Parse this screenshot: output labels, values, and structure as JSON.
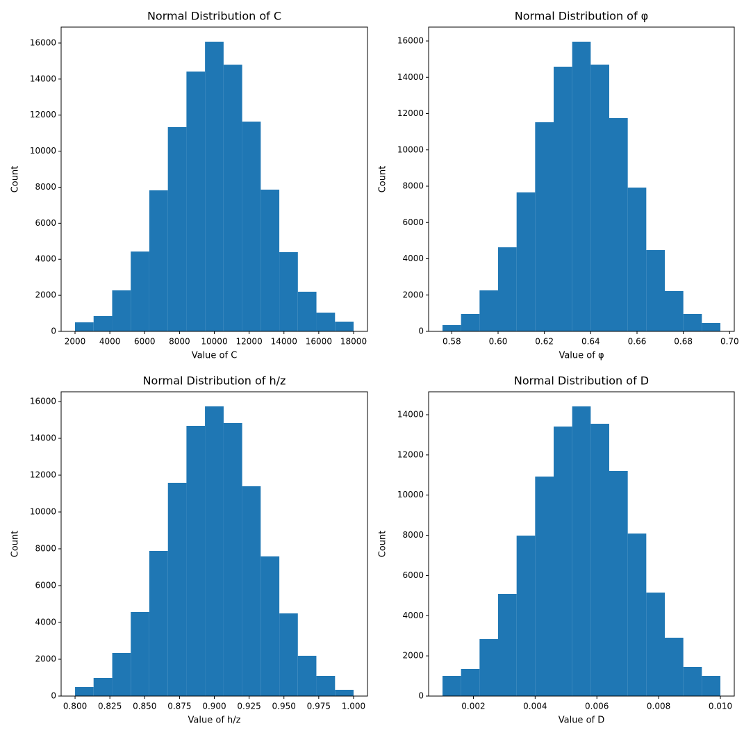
{
  "chart_data": [
    {
      "type": "histogram",
      "title": "Normal Distribution of C",
      "xlabel": "Value of C",
      "ylabel": "Count",
      "color": "#1f77b4",
      "bins": [
        2000,
        3066.67,
        4133.33,
        5200,
        6266.67,
        7333.33,
        8400,
        9466.67,
        10533.33,
        11600,
        12666.67,
        13733.33,
        14800,
        15866.67,
        16933.33,
        18000
      ],
      "values": [
        500,
        850,
        2275,
        4430,
        7825,
        11335,
        14420,
        16075,
        14800,
        11640,
        7865,
        4395,
        2200,
        1040,
        540
      ],
      "xlim": [
        1202,
        18798
      ],
      "ylim": [
        0,
        16885
      ],
      "xticks": [
        2000,
        4000,
        6000,
        8000,
        10000,
        12000,
        14000,
        16000,
        18000
      ],
      "yticks": [
        0,
        2000,
        4000,
        6000,
        8000,
        10000,
        12000,
        14000,
        16000
      ]
    },
    {
      "type": "histogram",
      "title": "Normal Distribution of φ",
      "xlabel": "Value of φ",
      "ylabel": "Count",
      "color": "#1f77b4",
      "bins": [
        0.576,
        0.584,
        0.592,
        0.6,
        0.608,
        0.616,
        0.624,
        0.632,
        0.64,
        0.648,
        0.656,
        0.664,
        0.672,
        0.68,
        0.688,
        0.696
      ],
      "values": [
        345,
        957,
        2258,
        4632,
        7655,
        11522,
        14584,
        15962,
        14699,
        11751,
        7923,
        4478,
        2220,
        957,
        459
      ],
      "xlim": [
        0.57,
        0.702
      ],
      "ylim": [
        0,
        16766
      ],
      "xticks": [
        0.58,
        {
          "value": 0.6,
          "label": "0.60"
        },
        0.62,
        0.64,
        0.66,
        0.68,
        {
          "value": 0.7,
          "label": "0.70"
        }
      ],
      "yticks": [
        0,
        2000,
        4000,
        6000,
        8000,
        10000,
        12000,
        14000,
        16000
      ]
    },
    {
      "type": "histogram",
      "title": "Normal Distribution of h/z",
      "xlabel": "Value of h/z",
      "ylabel": "Count",
      "color": "#1f77b4",
      "bins": [
        0.8,
        0.8133,
        0.8267,
        0.84,
        0.8533,
        0.8667,
        0.88,
        0.8933,
        0.9067,
        0.92,
        0.9333,
        0.9467,
        0.96,
        0.9733,
        0.9867,
        1.0
      ],
      "values": [
        490,
        981,
        2340,
        4566,
        7887,
        11585,
        14679,
        15736,
        14830,
        11396,
        7585,
        4491,
        2189,
        1094,
        340
      ],
      "xlim": [
        0.79,
        1.01
      ],
      "ylim": [
        0,
        16528
      ],
      "xticks": [
        {
          "value": 0.8,
          "label": "0.800"
        },
        0.825,
        {
          "value": 0.85,
          "label": "0.850"
        },
        0.875,
        {
          "value": 0.9,
          "label": "0.900"
        },
        0.925,
        {
          "value": 0.95,
          "label": "0.950"
        },
        0.975,
        {
          "value": 1.0,
          "label": "1.000"
        }
      ],
      "yticks": [
        0,
        2000,
        4000,
        6000,
        8000,
        10000,
        12000,
        14000,
        16000
      ]
    },
    {
      "type": "histogram",
      "title": "Normal Distribution of D",
      "xlabel": "Value of D",
      "ylabel": "Count",
      "color": "#1f77b4",
      "bins": [
        0.001,
        0.0016,
        0.0022,
        0.0028,
        0.0034,
        0.004,
        0.0046,
        0.0052,
        0.0058,
        0.0064,
        0.007,
        0.0076,
        0.0082,
        0.0088,
        0.0094,
        0.01
      ],
      "values": [
        1002,
        1348,
        2835,
        5081,
        7985,
        10923,
        13412,
        14414,
        13550,
        11200,
        8089,
        5150,
        2904,
        1452,
        1002
      ],
      "xlim": [
        0.00055,
        0.01045
      ],
      "ylim": [
        0,
        15141
      ],
      "xticks": [
        0.002,
        0.004,
        0.006,
        0.008,
        {
          "value": 0.01,
          "label": "0.010"
        }
      ],
      "yticks": [
        0,
        2000,
        4000,
        6000,
        8000,
        10000,
        12000,
        14000
      ]
    }
  ]
}
